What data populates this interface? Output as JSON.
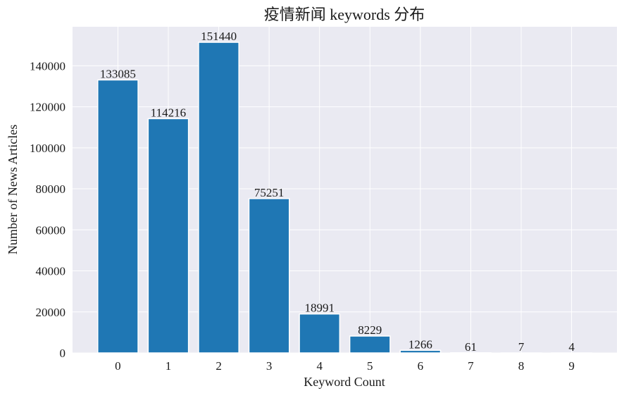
{
  "chart_data": {
    "type": "bar",
    "title": "疫情新闻 keywords 分布",
    "xlabel": "Keyword Count",
    "ylabel": "Number of News Articles",
    "categories": [
      "0",
      "1",
      "2",
      "3",
      "4",
      "5",
      "6",
      "7",
      "8",
      "9"
    ],
    "values": [
      133085,
      114216,
      151440,
      75251,
      18991,
      8229,
      1266,
      61,
      7,
      4
    ],
    "data_labels": [
      "133085",
      "114216",
      "151440",
      "75251",
      "18991",
      "8229",
      "1266",
      "61",
      "7",
      "4"
    ],
    "yticks": [
      0,
      20000,
      40000,
      60000,
      80000,
      100000,
      120000,
      140000
    ],
    "ytick_labels": [
      "0",
      "20000",
      "40000",
      "60000",
      "80000",
      "100000",
      "120000",
      "140000"
    ],
    "ylim": [
      0,
      159012
    ],
    "xlim": [
      -0.9,
      9.9
    ],
    "grid": true,
    "legend": "none",
    "colors": {
      "bar": "#1f77b4",
      "plot_background": "#eaeaf2",
      "grid": "#ffffff"
    }
  }
}
